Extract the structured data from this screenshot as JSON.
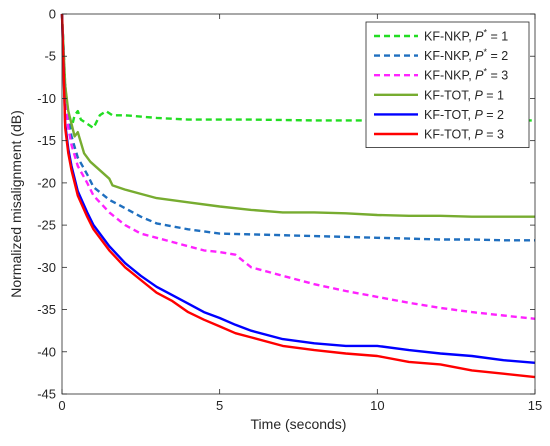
{
  "chart_data": {
    "type": "line",
    "xlabel": "Time (seconds)",
    "ylabel": "Normalized misalignment (dB)",
    "xlim": [
      0,
      15
    ],
    "ylim": [
      -45,
      0
    ],
    "xticks": [
      0,
      5,
      10,
      15
    ],
    "yticks": [
      0,
      -5,
      -10,
      -15,
      -20,
      -25,
      -30,
      -35,
      -40,
      -45
    ],
    "grid": false,
    "legend_position": "top-right",
    "series": [
      {
        "label_prefix": "KF-NKP, ",
        "var": "P",
        "sup": "*",
        "label_suffix": " = 1",
        "color": "#22dd22",
        "dash": "6,4",
        "x": [
          0,
          0.1,
          0.2,
          0.3,
          0.4,
          0.5,
          0.6,
          0.8,
          1.0,
          1.2,
          1.4,
          1.6,
          2,
          3,
          4,
          5,
          6,
          8,
          10,
          12,
          14,
          15
        ],
        "y": [
          0,
          -8.5,
          -12.0,
          -13.5,
          -12.0,
          -11.5,
          -12.5,
          -13.0,
          -13.5,
          -12.0,
          -11.5,
          -12.0,
          -12.0,
          -12.3,
          -12.5,
          -12.5,
          -12.5,
          -12.6,
          -12.6,
          -12.7,
          -12.6,
          -12.6
        ]
      },
      {
        "label_prefix": "KF-NKP, ",
        "var": "P",
        "sup": "*",
        "label_suffix": " = 2",
        "color": "#1f6fbf",
        "dash": "6,4",
        "x": [
          0,
          0.1,
          0.2,
          0.3,
          0.5,
          0.8,
          1.0,
          1.5,
          2,
          2.5,
          3,
          4,
          5,
          6,
          7,
          8,
          9,
          10,
          11,
          12,
          13,
          14,
          15
        ],
        "y": [
          0,
          -9,
          -12.5,
          -14.5,
          -17,
          -19,
          -20.5,
          -22,
          -23,
          -24,
          -24.8,
          -25.5,
          -26,
          -26.1,
          -26.2,
          -26.3,
          -26.4,
          -26.5,
          -26.6,
          -26.7,
          -26.7,
          -26.8,
          -26.8
        ]
      },
      {
        "label_prefix": "KF-NKP, ",
        "var": "P",
        "sup": "*",
        "label_suffix": " = 3",
        "color": "#ff22ff",
        "dash": "6,4",
        "x": [
          0,
          0.1,
          0.2,
          0.3,
          0.5,
          0.8,
          1.0,
          1.5,
          2,
          2.5,
          3,
          3.5,
          4,
          4.5,
          5,
          5.5,
          6,
          7,
          8,
          9,
          10,
          11,
          12,
          13,
          14,
          15
        ],
        "y": [
          0,
          -10,
          -13.5,
          -15.5,
          -18,
          -20,
          -21.5,
          -23.5,
          -25,
          -26,
          -26.5,
          -27,
          -27.5,
          -28,
          -28.2,
          -28.5,
          -30,
          -31,
          -32,
          -32.8,
          -33.5,
          -34.2,
          -34.8,
          -35.3,
          -35.7,
          -36.1
        ]
      },
      {
        "label_prefix": "KF-TOT, ",
        "var": "P",
        "sup": "",
        "label_suffix": " = 1",
        "color": "#77ac30",
        "dash": "",
        "x": [
          0,
          0.1,
          0.2,
          0.3,
          0.4,
          0.5,
          0.7,
          0.9,
          1.2,
          1.5,
          1.6,
          2,
          2.5,
          3,
          4,
          5,
          6,
          7,
          8,
          9,
          10,
          11,
          12,
          13,
          14,
          15
        ],
        "y": [
          0,
          -8.5,
          -11.5,
          -13,
          -14.5,
          -14,
          -16.5,
          -17.5,
          -18.5,
          -19.5,
          -20.3,
          -20.8,
          -21.3,
          -21.8,
          -22.3,
          -22.8,
          -23.2,
          -23.5,
          -23.5,
          -23.6,
          -23.8,
          -23.9,
          -23.9,
          -24.0,
          -24.0,
          -24.0
        ]
      },
      {
        "label_prefix": "KF-TOT, ",
        "var": "P",
        "sup": "",
        "label_suffix": " = 2",
        "color": "#0000ff",
        "dash": "",
        "x": [
          0,
          0.1,
          0.2,
          0.3,
          0.5,
          0.8,
          1.0,
          1.5,
          2,
          2.5,
          3,
          3.5,
          4,
          4.5,
          5,
          5.5,
          6,
          7,
          8,
          9,
          10,
          11,
          12,
          13,
          14,
          15
        ],
        "y": [
          0,
          -13,
          -16,
          -18,
          -21,
          -23.5,
          -25,
          -27.5,
          -29.5,
          -31,
          -32.3,
          -33.3,
          -34.3,
          -35.3,
          -36,
          -36.8,
          -37.5,
          -38.5,
          -39,
          -39.3,
          -39.3,
          -39.8,
          -40.2,
          -40.5,
          -41,
          -41.3
        ]
      },
      {
        "label_prefix": "KF-TOT, ",
        "var": "P",
        "sup": "",
        "label_suffix": " = 3",
        "color": "#ff0000",
        "dash": "",
        "x": [
          0,
          0.1,
          0.2,
          0.3,
          0.5,
          0.8,
          1.0,
          1.5,
          2,
          2.5,
          3,
          3.5,
          4,
          4.5,
          5,
          5.5,
          6,
          7,
          8,
          9,
          10,
          11,
          12,
          13,
          14,
          15
        ],
        "y": [
          0,
          -13.5,
          -16.5,
          -18.5,
          -21.5,
          -24,
          -25.5,
          -28,
          -30,
          -31.5,
          -33,
          -34,
          -35.3,
          -36.2,
          -37,
          -37.8,
          -38.3,
          -39.3,
          -39.8,
          -40.2,
          -40.5,
          -41.2,
          -41.5,
          -42.2,
          -42.6,
          -43
        ]
      }
    ]
  }
}
